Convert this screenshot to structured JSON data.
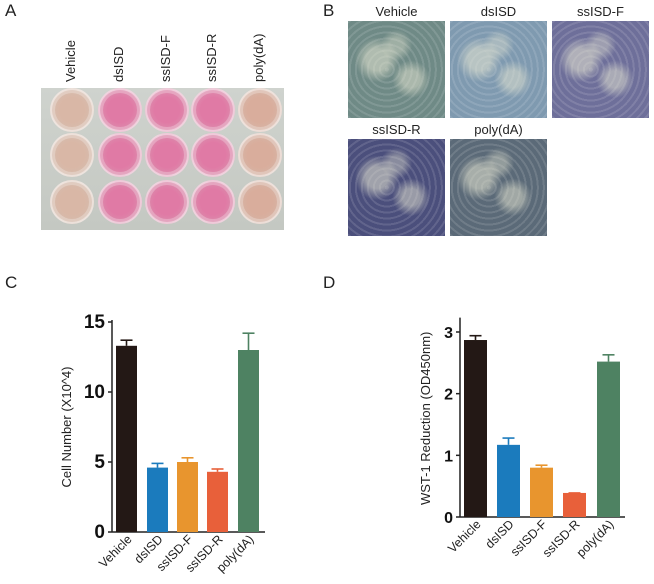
{
  "panels": {
    "A": {
      "letter": "A",
      "labels": [
        "Vehicle",
        "dsISD",
        "ssISD-F",
        "ssISD-R",
        "poly(dA)"
      ],
      "well_colors": [
        "#d9b7a6",
        "#e07aa5",
        "#e07aa5",
        "#e07aa5",
        "#d9ad9c"
      ]
    },
    "B": {
      "letter": "B",
      "labels": [
        "Vehicle",
        "dsISD",
        "ssISD-F",
        "ssISD-R",
        "poly(dA)"
      ],
      "image_tones": [
        "#6f8a86",
        "#7f9ab0",
        "#6e6f9a",
        "#4b4f7c",
        "#5b6a78"
      ]
    },
    "C": {
      "letter": "C"
    },
    "D": {
      "letter": "D"
    }
  },
  "chart_data": [
    {
      "type": "bar",
      "title": "",
      "xlabel": "",
      "ylabel": "Cell Number (X10^4)",
      "categories": [
        "Vehicle",
        "dsISD",
        "ssISD-F",
        "ssISD-R",
        "poly(dA)"
      ],
      "values": [
        13.3,
        4.6,
        5.0,
        4.3,
        13.0
      ],
      "error_upper": [
        13.7,
        4.9,
        5.3,
        4.5,
        14.2
      ],
      "colors": [
        "#231815",
        "#1b7bbd",
        "#e8952e",
        "#e8603a",
        "#4e8262"
      ],
      "ylim": [
        0,
        15
      ],
      "yticks": [
        0,
        5,
        10,
        15
      ],
      "grid": false
    },
    {
      "type": "bar",
      "title": "",
      "xlabel": "",
      "ylabel": "WST-1 Reduction (OD450nm)",
      "categories": [
        "Vehicle",
        "dsISD",
        "ssISD-F",
        "ssISD-R",
        "poly(dA)"
      ],
      "values": [
        2.87,
        1.17,
        0.8,
        0.39,
        2.52
      ],
      "error_upper": [
        2.94,
        1.28,
        0.84,
        0.39,
        2.63
      ],
      "colors": [
        "#231815",
        "#1b7bbd",
        "#e8952e",
        "#e8603a",
        "#4e8262"
      ],
      "ylim": [
        0,
        3.2
      ],
      "yticks": [
        0,
        1,
        2,
        3
      ],
      "grid": false
    }
  ]
}
